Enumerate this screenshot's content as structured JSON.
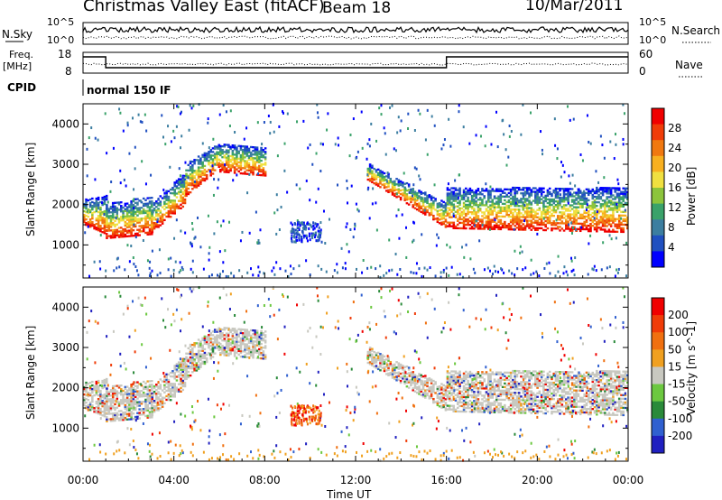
{
  "header": {
    "title": "Christmas Valley East (fitACF)",
    "beam": "Beam 18",
    "date": "10/Mar/2011"
  },
  "panels": {
    "nsky": {
      "label": "N.Sky",
      "ticks_left": [
        "10^5",
        "10^0"
      ],
      "right_label": "N.Search",
      "ticks_right": [
        "10^5",
        "10^0"
      ]
    },
    "freq": {
      "label_line1": "Freq.",
      "label_line2": "[MHz]",
      "ticks_left": [
        "18",
        "8"
      ],
      "right_label": "Nave",
      "ticks_right": [
        "60",
        "0"
      ]
    },
    "cpid": {
      "label": "CPID",
      "value": "normal 150 IF"
    }
  },
  "colors": {
    "power_scale": [
      "#0000ff",
      "#2050c0",
      "#3c7ea0",
      "#3aa26a",
      "#8cc43c",
      "#f0e040",
      "#f8b020",
      "#f07810",
      "#f03c08",
      "#f00000"
    ],
    "velocity_scale": [
      "#2020c0",
      "#3060d0",
      "#2a8a3a",
      "#6cc840",
      "#c8c8c0",
      "#f0a020",
      "#f07010",
      "#f03c08",
      "#f00000"
    ]
  },
  "chart_data": [
    {
      "type": "heatmap",
      "name": "power",
      "ylabel": "Slant Range [km]",
      "ylim": [
        180,
        4500
      ],
      "yticks": [
        1000,
        2000,
        3000,
        4000
      ],
      "xlim": [
        0,
        24
      ],
      "xticks": [
        "00:00",
        "04:00",
        "08:00",
        "12:00",
        "16:00",
        "20:00",
        "00:00"
      ],
      "colorbar_label": "Power [dB]",
      "colorbar_ticks": [
        "28",
        "24",
        "20",
        "16",
        "12",
        "8",
        "4"
      ],
      "bands": [
        {
          "t": [
            0,
            1
          ],
          "r_low": [
            1500,
            1250
          ],
          "r_high": [
            2100,
            2200
          ]
        },
        {
          "t": [
            1,
            3
          ],
          "r_low": [
            1150,
            1250
          ],
          "r_high": [
            2000,
            2200
          ]
        },
        {
          "t": [
            3,
            4.5
          ],
          "r_low": [
            1300,
            2000
          ],
          "r_high": [
            2000,
            2800
          ]
        },
        {
          "t": [
            4.5,
            6
          ],
          "r_low": [
            2200,
            2900
          ],
          "r_high": [
            3000,
            3500
          ]
        },
        {
          "t": [
            6,
            8
          ],
          "r_low": [
            2800,
            2700
          ],
          "r_high": [
            3500,
            3400
          ]
        },
        {
          "t": [
            12.5,
            16
          ],
          "r_low": [
            2600,
            1400
          ],
          "r_high": [
            3000,
            2000
          ]
        },
        {
          "t": [
            16,
            24
          ],
          "r_low": [
            1400,
            1300
          ],
          "r_high": [
            2400,
            2400
          ]
        }
      ],
      "patches": [
        {
          "t": 9.8,
          "r": 1300,
          "label": "blob"
        }
      ]
    },
    {
      "type": "heatmap",
      "name": "velocity",
      "ylabel": "Slant Range [km]",
      "ylim": [
        180,
        4500
      ],
      "yticks": [
        1000,
        2000,
        3000,
        4000
      ],
      "xlim": [
        0,
        24
      ],
      "xticks": [
        "00:00",
        "04:00",
        "08:00",
        "12:00",
        "16:00",
        "20:00",
        "00:00"
      ],
      "xlabel": "Time UT",
      "colorbar_label": "Velocity [m s^-1]",
      "colorbar_ticks": [
        "200",
        "100",
        "50",
        "15",
        "-15",
        "-50",
        "-100",
        "-200"
      ]
    }
  ]
}
